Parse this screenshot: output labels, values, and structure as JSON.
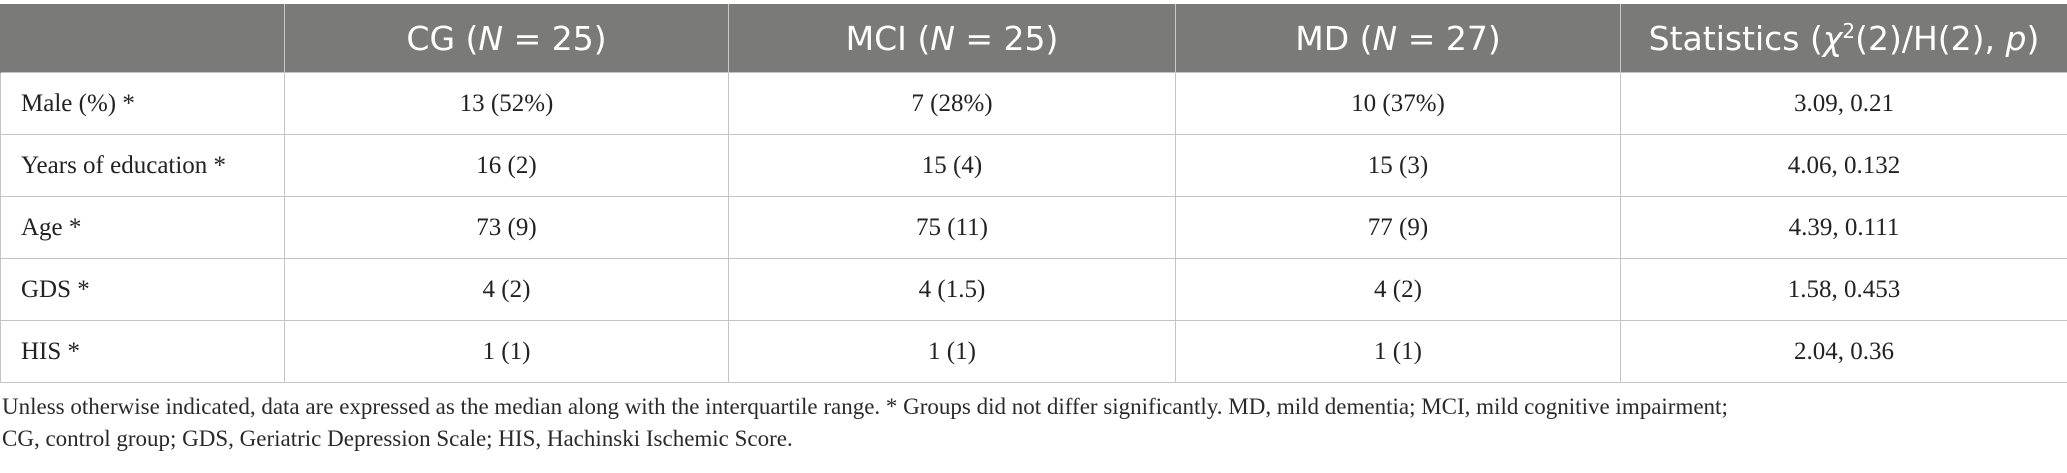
{
  "table": {
    "headers": [
      {
        "pre": "",
        "italic": "",
        "post": ""
      },
      {
        "pre": "CG (",
        "italic": "N",
        "post": " = 25)"
      },
      {
        "pre": "MCI (",
        "italic": "N",
        "post": " = 25)"
      },
      {
        "pre": "MD (",
        "italic": "N",
        "post": " = 27)"
      },
      {
        "pre": "Statistics (",
        "italic_chi": "χ",
        "sup": "2",
        "mid": "(2)/H(2), ",
        "italic_p": "p",
        "post": ")"
      }
    ],
    "rows": [
      {
        "label": "Male (%) *",
        "cg": "13 (52%)",
        "mci": "7 (28%)",
        "md": "10 (37%)",
        "stats": "3.09, 0.21"
      },
      {
        "label": "Years of education *",
        "cg": "16 (2)",
        "mci": "15 (4)",
        "md": "15 (3)",
        "stats": "4.06, 0.132"
      },
      {
        "label": "Age *",
        "cg": "73 (9)",
        "mci": "75 (11)",
        "md": "77 (9)",
        "stats": "4.39, 0.111"
      },
      {
        "label": "GDS *",
        "cg": "4 (2)",
        "mci": "4 (1.5)",
        "md": "4 (2)",
        "stats": "1.58, 0.453"
      },
      {
        "label": "HIS *",
        "cg": "1 (1)",
        "mci": "1 (1)",
        "md": "1 (1)",
        "stats": "2.04, 0.36"
      }
    ]
  },
  "footnote": {
    "line1": "Unless otherwise indicated, data are expressed as the median along with the interquartile range. * Groups did not differ significantly. MD, mild dementia; MCI, mild cognitive impairment;",
    "line2": "CG, control group; GDS, Geriatric Depression Scale; HIS, Hachinski Ischemic Score."
  },
  "colors": {
    "header_bg": "#7a7a79",
    "header_text": "#ffffff",
    "grid": "#c4c4c4",
    "body_text": "#222222"
  }
}
